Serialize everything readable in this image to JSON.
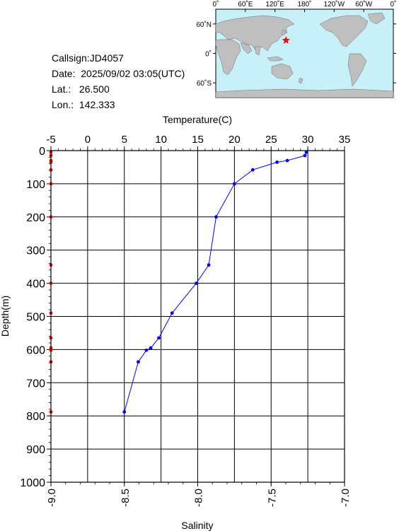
{
  "info": {
    "callsign": "Callsign:JD4057",
    "date": "Date:  2025/09/02 03:05(UTC)",
    "lat": "Lat.:   26.500",
    "lon": "Lon.:  142.333"
  },
  "map": {
    "top_ticks": [
      "0˚",
      "60˚E",
      "120˚E",
      "180˚",
      "120˚W",
      "60˚W",
      "0˚"
    ],
    "lat_ticks": [
      "60˚N",
      "0˚",
      "60˚S"
    ],
    "ocean_color": "#c8f0f8",
    "land_color": "#bfbfbf",
    "marker": {
      "lon": 142.333,
      "lat": 26.5,
      "color": "#ff0000"
    }
  },
  "chart_data": {
    "type": "line",
    "temperature_label": "Temperature(C)",
    "salinity_label": "Salinity",
    "depth_label": "Depth(m)",
    "temperature_range": [
      -5,
      35
    ],
    "temperature_ticks": [
      "-5",
      "0",
      "5",
      "10",
      "15",
      "20",
      "25",
      "30",
      "35"
    ],
    "salinity_range": [
      -9.0,
      -7.0
    ],
    "salinity_ticks": [
      "-9.0",
      "-8.5",
      "-8.0",
      "-7.5",
      "-7.0"
    ],
    "depth_range": [
      0,
      1000
    ],
    "depth_ticks": [
      "0",
      "100",
      "200",
      "300",
      "400",
      "500",
      "600",
      "700",
      "800",
      "900",
      "1000"
    ],
    "grid": true,
    "temperature_series": {
      "color": "#0000ff",
      "points": [
        {
          "depth": 5,
          "value": 29.8
        },
        {
          "depth": 15,
          "value": 29.6
        },
        {
          "depth": 30,
          "value": 27.2
        },
        {
          "depth": 35,
          "value": 25.8
        },
        {
          "depth": 58,
          "value": 22.5
        },
        {
          "depth": 100,
          "value": 20.0
        },
        {
          "depth": 200,
          "value": 17.5
        },
        {
          "depth": 345,
          "value": 16.5
        },
        {
          "depth": 400,
          "value": 14.8
        },
        {
          "depth": 490,
          "value": 11.5
        },
        {
          "depth": 565,
          "value": 9.7
        },
        {
          "depth": 595,
          "value": 8.6
        },
        {
          "depth": 602,
          "value": 8.0
        },
        {
          "depth": 637,
          "value": 6.9
        },
        {
          "depth": 788,
          "value": 5.0
        }
      ]
    },
    "salinity_series": {
      "color": "#ff0000",
      "points": [
        {
          "depth": 5,
          "value": -9.0
        },
        {
          "depth": 15,
          "value": -9.0
        },
        {
          "depth": 30,
          "value": -9.0
        },
        {
          "depth": 35,
          "value": -9.0
        },
        {
          "depth": 58,
          "value": -9.0
        },
        {
          "depth": 100,
          "value": -9.0
        },
        {
          "depth": 200,
          "value": -9.0
        },
        {
          "depth": 345,
          "value": -9.0
        },
        {
          "depth": 400,
          "value": -9.0
        },
        {
          "depth": 490,
          "value": -9.0
        },
        {
          "depth": 565,
          "value": -9.0
        },
        {
          "depth": 595,
          "value": -9.0
        },
        {
          "depth": 602,
          "value": -9.0
        },
        {
          "depth": 637,
          "value": -9.0
        },
        {
          "depth": 788,
          "value": -9.0
        }
      ]
    }
  }
}
